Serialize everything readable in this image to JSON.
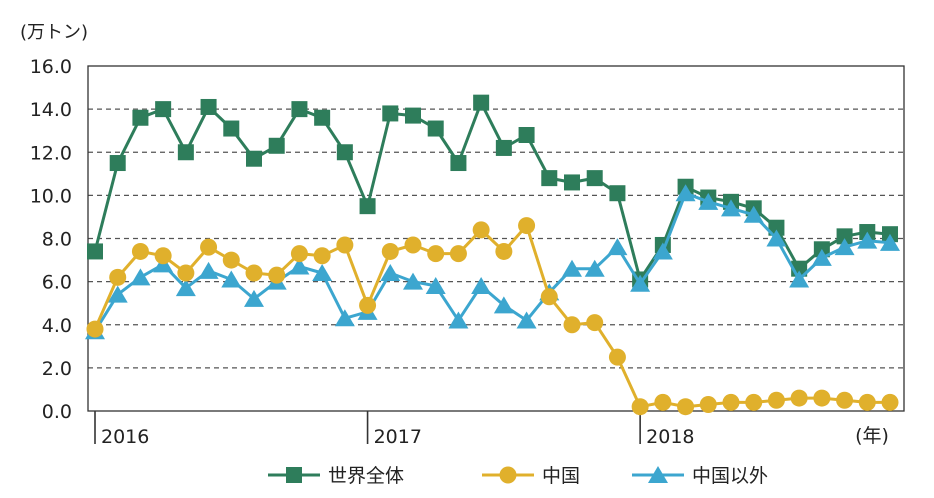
{
  "chart_data": {
    "type": "line",
    "title": "",
    "ylabel": "(万トン)",
    "xlabel": "(年)",
    "ylim": [
      0,
      16
    ],
    "yticks": [
      "0.0",
      "2.0",
      "4.0",
      "6.0",
      "8.0",
      "10.0",
      "12.0",
      "14.0",
      "16.0"
    ],
    "year_labels": [
      {
        "label": "2016",
        "month_index": 0
      },
      {
        "label": "2017",
        "month_index": 12
      },
      {
        "label": "2018",
        "month_index": 24
      }
    ],
    "grid": true,
    "legend_position": "bottom",
    "series": [
      {
        "name": "世界全体",
        "color": "#2e7d5b",
        "marker": "square",
        "values": [
          7.4,
          11.5,
          13.6,
          14.0,
          12.0,
          14.1,
          13.1,
          11.7,
          12.3,
          14.0,
          13.6,
          12.0,
          9.5,
          13.8,
          13.7,
          13.1,
          11.5,
          14.3,
          12.2,
          12.8,
          10.8,
          10.6,
          10.8,
          10.1,
          6.1,
          7.7,
          10.4,
          9.9,
          9.7,
          9.4,
          8.5,
          6.6,
          7.5,
          8.1,
          8.3,
          8.2
        ]
      },
      {
        "name": "中国",
        "color": "#e0b02c",
        "marker": "circle",
        "values": [
          3.8,
          6.2,
          7.4,
          7.2,
          6.4,
          7.6,
          7.0,
          6.4,
          6.3,
          7.3,
          7.2,
          7.7,
          4.9,
          7.4,
          7.7,
          7.3,
          7.3,
          8.4,
          7.4,
          8.6,
          5.3,
          4.0,
          4.1,
          2.5,
          0.2,
          0.4,
          0.2,
          0.3,
          0.4,
          0.4,
          0.5,
          0.6,
          0.6,
          0.5,
          0.4,
          0.4
        ]
      },
      {
        "name": "中国以外",
        "color": "#3ca6cf",
        "marker": "triangle",
        "values": [
          3.7,
          5.4,
          6.2,
          6.8,
          5.7,
          6.5,
          6.1,
          5.2,
          6.0,
          6.7,
          6.4,
          4.3,
          4.6,
          6.4,
          6.0,
          5.8,
          4.2,
          5.8,
          4.9,
          4.2,
          5.5,
          6.6,
          6.6,
          7.6,
          5.9,
          7.4,
          10.1,
          9.7,
          9.4,
          9.1,
          8.0,
          6.1,
          7.1,
          7.6,
          7.9,
          7.8
        ]
      }
    ]
  }
}
